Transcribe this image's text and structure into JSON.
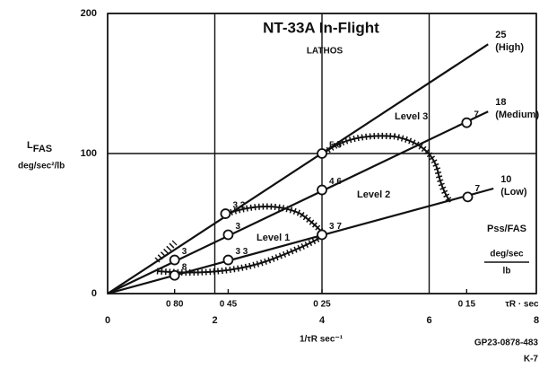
{
  "chart_data": {
    "type": "line",
    "title": "NT-33A In-Flight",
    "subtitle": "LATHOS",
    "y_label": {
      "main": "L",
      "sub": "FAS",
      "units": "deg/sec²/lb"
    },
    "x_label": "1/τR sec⁻¹",
    "tau_label": "τR · sec",
    "tau_ticks": [
      {
        "value": 1.25,
        "label": "0 80"
      },
      {
        "value": 2.25,
        "label": "0 45"
      },
      {
        "value": 4,
        "label": "0 25"
      },
      {
        "value": 6.7,
        "label": "0 15"
      }
    ],
    "ratio_label": {
      "main": "Pss/FAS",
      "num": "deg/sec",
      "den": "lb"
    },
    "levels": [
      "Level 1",
      "Level 2",
      "Level 3"
    ],
    "code": "GP23-0878-483",
    "page": "K-7",
    "xlim": [
      0,
      8
    ],
    "ylim": [
      0,
      200
    ],
    "xticks": [
      0,
      2,
      4,
      6,
      8
    ],
    "yticks": [
      0,
      100,
      200
    ],
    "grid": true,
    "series": [
      {
        "name": "25",
        "label": "(High)",
        "color": "#111",
        "x": [
          0,
          7.1
        ],
        "values": [
          0,
          178
        ]
      },
      {
        "name": "18",
        "label": "(Medium)",
        "color": "#111",
        "x": [
          0,
          7.1
        ],
        "values": [
          0,
          130
        ]
      },
      {
        "name": "10",
        "label": "(Low)",
        "color": "#111",
        "x": [
          0,
          7.2
        ],
        "values": [
          0,
          75
        ]
      }
    ],
    "points": [
      {
        "label": "3 2",
        "x": 2.2,
        "y": 57
      },
      {
        "label": "5 6",
        "x": 4,
        "y": 100
      },
      {
        "label": "3",
        "x": 2.25,
        "y": 42
      },
      {
        "label": "4 6",
        "x": 4,
        "y": 74
      },
      {
        "label": "7",
        "x": 6.7,
        "y": 122
      },
      {
        "label": "3 7",
        "x": 4,
        "y": 42
      },
      {
        "label": "7",
        "x": 6.72,
        "y": 69
      },
      {
        "label": "3 3",
        "x": 2.25,
        "y": 24
      },
      {
        "label": "3",
        "x": 1.25,
        "y": 24
      },
      {
        "label": "8",
        "x": 1.25,
        "y": 13
      }
    ]
  }
}
